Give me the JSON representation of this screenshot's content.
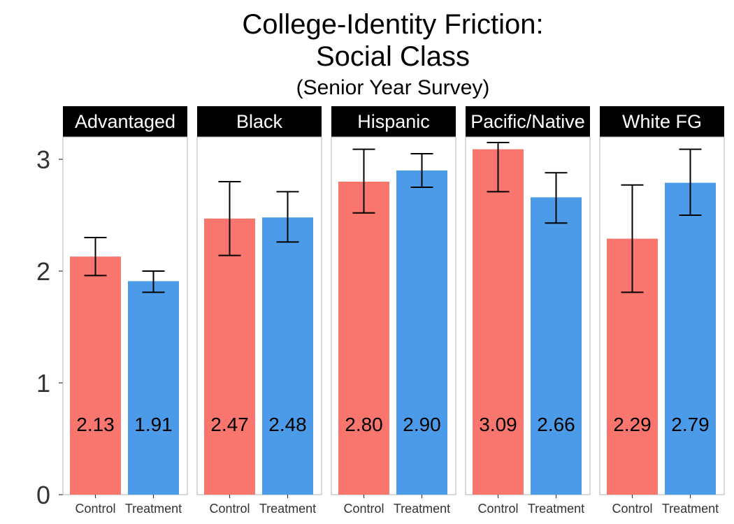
{
  "chart_data": {
    "type": "bar",
    "title_lines": [
      "College-Identity Friction:",
      "Social Class"
    ],
    "subtitle": "(Senior Year Survey)",
    "xlabel": "",
    "ylabel": "",
    "ylim": [
      0,
      3.2
    ],
    "yticks": [
      0,
      1,
      2,
      3
    ],
    "categories": [
      "Control",
      "Treatment"
    ],
    "grid": false,
    "legend": "none",
    "colors": {
      "Control": "#F8766D",
      "Treatment": "#4C9BE8"
    },
    "panels": [
      {
        "label": "Advantaged",
        "bars": [
          {
            "group": "Control",
            "value": 2.13,
            "value_label": "2.13",
            "err_low": 1.96,
            "err_high": 2.3
          },
          {
            "group": "Treatment",
            "value": 1.91,
            "value_label": "1.91",
            "err_low": 1.81,
            "err_high": 2.0
          }
        ]
      },
      {
        "label": "Black",
        "bars": [
          {
            "group": "Control",
            "value": 2.47,
            "value_label": "2.47",
            "err_low": 2.14,
            "err_high": 2.8
          },
          {
            "group": "Treatment",
            "value": 2.48,
            "value_label": "2.48",
            "err_low": 2.26,
            "err_high": 2.71
          }
        ]
      },
      {
        "label": "Hispanic",
        "bars": [
          {
            "group": "Control",
            "value": 2.8,
            "value_label": "2.80",
            "err_low": 2.52,
            "err_high": 3.09
          },
          {
            "group": "Treatment",
            "value": 2.9,
            "value_label": "2.90",
            "err_low": 2.75,
            "err_high": 3.05
          }
        ]
      },
      {
        "label": "Pacific/Native",
        "bars": [
          {
            "group": "Control",
            "value": 3.09,
            "value_label": "3.09",
            "err_low": 2.71,
            "err_high": 3.15
          },
          {
            "group": "Treatment",
            "value": 2.66,
            "value_label": "2.66",
            "err_low": 2.43,
            "err_high": 2.88
          }
        ]
      },
      {
        "label": "White FG",
        "bars": [
          {
            "group": "Control",
            "value": 2.29,
            "value_label": "2.29",
            "err_low": 1.81,
            "err_high": 2.77
          },
          {
            "group": "Treatment",
            "value": 2.79,
            "value_label": "2.79",
            "err_low": 2.5,
            "err_high": 3.09
          }
        ]
      }
    ]
  }
}
